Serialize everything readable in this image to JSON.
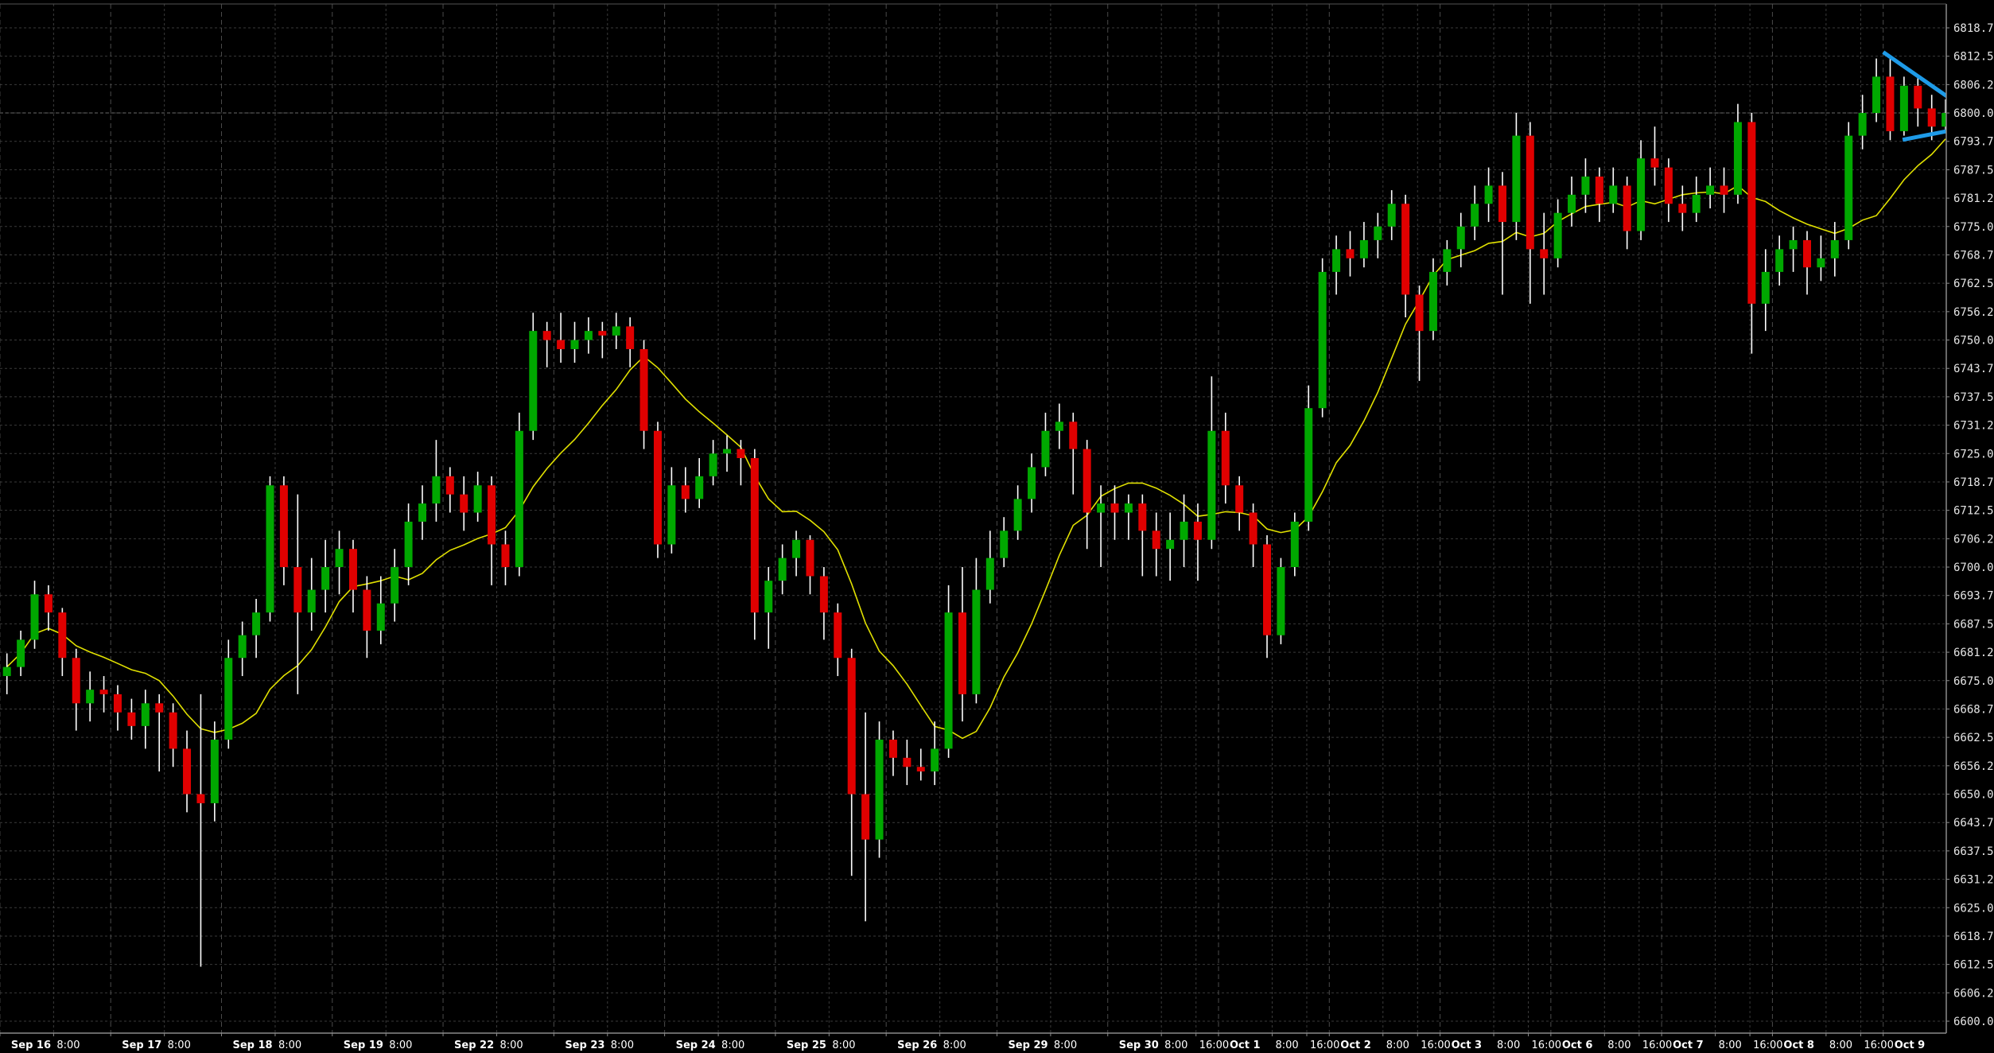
{
  "chart_data": {
    "type": "candlestick",
    "title": "",
    "xlabel": "",
    "ylabel": "",
    "ylim": [
      6600.0,
      6818.75
    ],
    "y_ticks": [
      "6818.75",
      "6812.50",
      "6806.25",
      "6800.00",
      "6793.75",
      "6787.50",
      "6781.25",
      "6775.00",
      "6768.75",
      "6762.50",
      "6756.25",
      "6750.00",
      "6743.75",
      "6737.50",
      "6731.25",
      "6725.00",
      "6718.75",
      "6712.50",
      "6706.25",
      "6700.00",
      "6693.75",
      "6687.50",
      "6681.25",
      "6675.00",
      "6668.75",
      "6662.50",
      "6656.25",
      "6650.00",
      "6643.75",
      "6637.50",
      "6631.25",
      "6625.00",
      "6618.75",
      "6612.50",
      "6606.25",
      "6600.00"
    ],
    "x_ticks": [
      {
        "label": "Sep 16",
        "at": 0.8,
        "bold": true
      },
      {
        "label": "8:00",
        "at": 4.1,
        "bold": false
      },
      {
        "label": "Sep 17",
        "at": 8.8,
        "bold": true
      },
      {
        "label": "8:00",
        "at": 12.1,
        "bold": false
      },
      {
        "label": "Sep 18",
        "at": 16.8,
        "bold": true
      },
      {
        "label": "8:00",
        "at": 20.1,
        "bold": false
      },
      {
        "label": "Sep 19",
        "at": 24.8,
        "bold": true
      },
      {
        "label": "8:00",
        "at": 28.1,
        "bold": false
      },
      {
        "label": "Sep 22",
        "at": 32.8,
        "bold": true
      },
      {
        "label": "8:00",
        "at": 36.1,
        "bold": false
      },
      {
        "label": "Sep 23",
        "at": 40.8,
        "bold": true
      },
      {
        "label": "8:00",
        "at": 44.1,
        "bold": false
      },
      {
        "label": "Sep 24",
        "at": 48.8,
        "bold": true
      },
      {
        "label": "8:00",
        "at": 52.1,
        "bold": false
      },
      {
        "label": "Sep 25",
        "at": 56.8,
        "bold": true
      },
      {
        "label": "8:00",
        "at": 60.1,
        "bold": false
      },
      {
        "label": "Sep 26",
        "at": 64.8,
        "bold": true
      },
      {
        "label": "8:00",
        "at": 68.1,
        "bold": false
      },
      {
        "label": "Sep 29",
        "at": 72.8,
        "bold": true
      },
      {
        "label": "8:00",
        "at": 76.1,
        "bold": false
      },
      {
        "label": "Sep 30",
        "at": 80.8,
        "bold": true
      },
      {
        "label": "8:00",
        "at": 84.1,
        "bold": false
      },
      {
        "label": "16:00",
        "at": 86.6,
        "bold": false
      },
      {
        "label": "Oct 1",
        "at": 88.8,
        "bold": true
      },
      {
        "label": "8:00",
        "at": 92.1,
        "bold": false
      },
      {
        "label": "16:00",
        "at": 94.6,
        "bold": false
      },
      {
        "label": "Oct 2",
        "at": 96.8,
        "bold": true
      },
      {
        "label": "8:00",
        "at": 100.1,
        "bold": false
      },
      {
        "label": "16:00",
        "at": 102.6,
        "bold": false
      },
      {
        "label": "Oct 3",
        "at": 104.8,
        "bold": true
      },
      {
        "label": "8:00",
        "at": 108.1,
        "bold": false
      },
      {
        "label": "16:00",
        "at": 110.6,
        "bold": false
      },
      {
        "label": "Oct 6",
        "at": 112.8,
        "bold": true
      },
      {
        "label": "8:00",
        "at": 116.1,
        "bold": false
      },
      {
        "label": "16:00",
        "at": 118.6,
        "bold": false
      },
      {
        "label": "Oct 7",
        "at": 120.8,
        "bold": true
      },
      {
        "label": "8:00",
        "at": 124.1,
        "bold": false
      },
      {
        "label": "16:00",
        "at": 126.6,
        "bold": false
      },
      {
        "label": "Oct 8",
        "at": 128.8,
        "bold": true
      },
      {
        "label": "8:00",
        "at": 132.1,
        "bold": false
      },
      {
        "label": "16:00",
        "at": 134.6,
        "bold": false
      },
      {
        "label": "Oct 9",
        "at": 136.8,
        "bold": true
      }
    ],
    "current_price_line": 6800.0,
    "grid": true,
    "colors": {
      "background": "#000000",
      "up": "#00a800",
      "down": "#e00000",
      "wick": "#ffffff",
      "moving_average": "#e0e000",
      "trendline": "#1e9be8",
      "grid": "#3a3a3a",
      "axis": "#8a8a8a"
    },
    "moving_average": {
      "type": "sma"
    },
    "trendlines": [
      {
        "from": [
          136.0,
          6813.4
        ],
        "to": [
          141.2,
          6802.4
        ]
      },
      {
        "from": [
          137.4,
          6794.1
        ],
        "to": [
          140.6,
          6796.0
        ]
      }
    ],
    "candles_ohlc": [
      [
        6676,
        6681,
        6672,
        6678
      ],
      [
        6678,
        6686,
        6676,
        6684
      ],
      [
        6684,
        6697,
        6682,
        6694
      ],
      [
        6694,
        6696,
        6686,
        6690
      ],
      [
        6690,
        6691,
        6676,
        6680
      ],
      [
        6680,
        6682,
        6664,
        6670
      ],
      [
        6670,
        6677,
        6666,
        6673
      ],
      [
        6673,
        6676,
        6668,
        6672
      ],
      [
        6672,
        6674,
        6664,
        6668
      ],
      [
        6668,
        6671,
        6662,
        6665
      ],
      [
        6665,
        6673,
        6660,
        6670
      ],
      [
        6670,
        6672,
        6655,
        6668
      ],
      [
        6668,
        6670,
        6656,
        6660
      ],
      [
        6660,
        6664,
        6646,
        6650
      ],
      [
        6650,
        6672,
        6612,
        6648
      ],
      [
        6648,
        6666,
        6644,
        6662
      ],
      [
        6662,
        6684,
        6660,
        6680
      ],
      [
        6680,
        6688,
        6676,
        6685
      ],
      [
        6685,
        6693,
        6680,
        6690
      ],
      [
        6690,
        6720,
        6688,
        6718
      ],
      [
        6718,
        6720,
        6696,
        6700
      ],
      [
        6700,
        6716,
        6672,
        6690
      ],
      [
        6690,
        6702,
        6686,
        6695
      ],
      [
        6695,
        6706,
        6690,
        6700
      ],
      [
        6700,
        6708,
        6694,
        6704
      ],
      [
        6704,
        6706,
        6690,
        6695
      ],
      [
        6695,
        6698,
        6680,
        6686
      ],
      [
        6686,
        6698,
        6683,
        6692
      ],
      [
        6692,
        6704,
        6688,
        6700
      ],
      [
        6700,
        6714,
        6696,
        6710
      ],
      [
        6710,
        6718,
        6706,
        6714
      ],
      [
        6714,
        6728,
        6710,
        6720
      ],
      [
        6720,
        6722,
        6712,
        6716
      ],
      [
        6716,
        6720,
        6708,
        6712
      ],
      [
        6712,
        6721,
        6710,
        6718
      ],
      [
        6718,
        6720,
        6696,
        6705
      ],
      [
        6705,
        6708,
        6696,
        6700
      ],
      [
        6700,
        6734,
        6698,
        6730
      ],
      [
        6730,
        6756,
        6728,
        6752
      ],
      [
        6752,
        6754,
        6744,
        6750
      ],
      [
        6750,
        6756,
        6745,
        6748
      ],
      [
        6748,
        6754,
        6745,
        6750
      ],
      [
        6750,
        6755,
        6747,
        6752
      ],
      [
        6752,
        6754,
        6746,
        6751
      ],
      [
        6751,
        6756,
        6748,
        6753
      ],
      [
        6753,
        6755,
        6744,
        6748
      ],
      [
        6748,
        6750,
        6726,
        6730
      ],
      [
        6730,
        6732,
        6702,
        6705
      ],
      [
        6705,
        6722,
        6703,
        6718
      ],
      [
        6718,
        6722,
        6712,
        6715
      ],
      [
        6715,
        6724,
        6713,
        6720
      ],
      [
        6720,
        6728,
        6718,
        6725
      ],
      [
        6725,
        6729,
        6721,
        6726
      ],
      [
        6726,
        6728,
        6718,
        6724
      ],
      [
        6724,
        6726,
        6684,
        6690
      ],
      [
        6690,
        6700,
        6682,
        6697
      ],
      [
        6697,
        6705,
        6694,
        6702
      ],
      [
        6702,
        6708,
        6698,
        6706
      ],
      [
        6706,
        6707,
        6694,
        6698
      ],
      [
        6698,
        6700,
        6684,
        6690
      ],
      [
        6690,
        6692,
        6676,
        6680
      ],
      [
        6680,
        6682,
        6632,
        6650
      ],
      [
        6650,
        6668,
        6622,
        6640
      ],
      [
        6640,
        6666,
        6636,
        6662
      ],
      [
        6662,
        6664,
        6654,
        6658
      ],
      [
        6658,
        6662,
        6652,
        6656
      ],
      [
        6656,
        6660,
        6653,
        6655
      ],
      [
        6655,
        6666,
        6652,
        6660
      ],
      [
        6660,
        6696,
        6658,
        6690
      ],
      [
        6690,
        6700,
        6666,
        6672
      ],
      [
        6672,
        6702,
        6670,
        6695
      ],
      [
        6695,
        6708,
        6692,
        6702
      ],
      [
        6702,
        6711,
        6700,
        6708
      ],
      [
        6708,
        6718,
        6706,
        6715
      ],
      [
        6715,
        6725,
        6712,
        6722
      ],
      [
        6722,
        6734,
        6720,
        6730
      ],
      [
        6730,
        6736,
        6726,
        6732
      ],
      [
        6732,
        6734,
        6716,
        6726
      ],
      [
        6726,
        6728,
        6704,
        6712
      ],
      [
        6712,
        6718,
        6700,
        6714
      ],
      [
        6714,
        6718,
        6706,
        6712
      ],
      [
        6712,
        6716,
        6706,
        6714
      ],
      [
        6714,
        6716,
        6698,
        6708
      ],
      [
        6708,
        6712,
        6698,
        6704
      ],
      [
        6704,
        6712,
        6697,
        6706
      ],
      [
        6706,
        6716,
        6700,
        6710
      ],
      [
        6710,
        6714,
        6697,
        6706
      ],
      [
        6706,
        6742,
        6704,
        6730
      ],
      [
        6730,
        6734,
        6714,
        6718
      ],
      [
        6718,
        6720,
        6708,
        6712
      ],
      [
        6712,
        6714,
        6700,
        6705
      ],
      [
        6705,
        6707,
        6680,
        6685
      ],
      [
        6685,
        6702,
        6683,
        6700
      ],
      [
        6700,
        6712,
        6698,
        6710
      ],
      [
        6710,
        6740,
        6708,
        6735
      ],
      [
        6735,
        6768,
        6733,
        6765
      ],
      [
        6765,
        6773,
        6760,
        6770
      ],
      [
        6770,
        6774,
        6764,
        6768
      ],
      [
        6768,
        6776,
        6766,
        6772
      ],
      [
        6772,
        6778,
        6768,
        6775
      ],
      [
        6775,
        6783,
        6772,
        6780
      ],
      [
        6780,
        6782,
        6755,
        6760
      ],
      [
        6760,
        6762,
        6741,
        6752
      ],
      [
        6752,
        6768,
        6750,
        6765
      ],
      [
        6765,
        6772,
        6762,
        6770
      ],
      [
        6770,
        6778,
        6766,
        6775
      ],
      [
        6775,
        6784,
        6772,
        6780
      ],
      [
        6780,
        6788,
        6776,
        6784
      ],
      [
        6784,
        6787,
        6760,
        6776
      ],
      [
        6776,
        6800,
        6772,
        6795
      ],
      [
        6795,
        6798,
        6758,
        6770
      ],
      [
        6770,
        6778,
        6760,
        6768
      ],
      [
        6768,
        6781,
        6766,
        6778
      ],
      [
        6778,
        6786,
        6775,
        6782
      ],
      [
        6782,
        6790,
        6778,
        6786
      ],
      [
        6786,
        6788,
        6776,
        6780
      ],
      [
        6780,
        6788,
        6778,
        6784
      ],
      [
        6784,
        6786,
        6770,
        6774
      ],
      [
        6774,
        6794,
        6772,
        6790
      ],
      [
        6790,
        6797,
        6784,
        6788
      ],
      [
        6788,
        6790,
        6776,
        6780
      ],
      [
        6780,
        6784,
        6774,
        6778
      ],
      [
        6778,
        6786,
        6776,
        6782
      ],
      [
        6782,
        6788,
        6779,
        6784
      ],
      [
        6784,
        6788,
        6778,
        6782
      ],
      [
        6782,
        6802,
        6780,
        6798
      ],
      [
        6798,
        6800,
        6747,
        6758
      ],
      [
        6758,
        6770,
        6752,
        6765
      ],
      [
        6765,
        6773,
        6762,
        6770
      ],
      [
        6770,
        6775,
        6765,
        6772
      ],
      [
        6772,
        6774,
        6760,
        6766
      ],
      [
        6766,
        6773,
        6763,
        6768
      ],
      [
        6768,
        6776,
        6764,
        6772
      ],
      [
        6772,
        6798,
        6770,
        6795
      ],
      [
        6795,
        6804,
        6792,
        6800
      ],
      [
        6800,
        6812,
        6798,
        6808
      ],
      [
        6808,
        6812,
        6794,
        6796
      ],
      [
        6796,
        6808,
        6795,
        6806
      ],
      [
        6806,
        6808,
        6797,
        6801
      ],
      [
        6801,
        6804,
        6794,
        6797
      ],
      [
        6797,
        6803,
        6796,
        6800
      ]
    ]
  }
}
